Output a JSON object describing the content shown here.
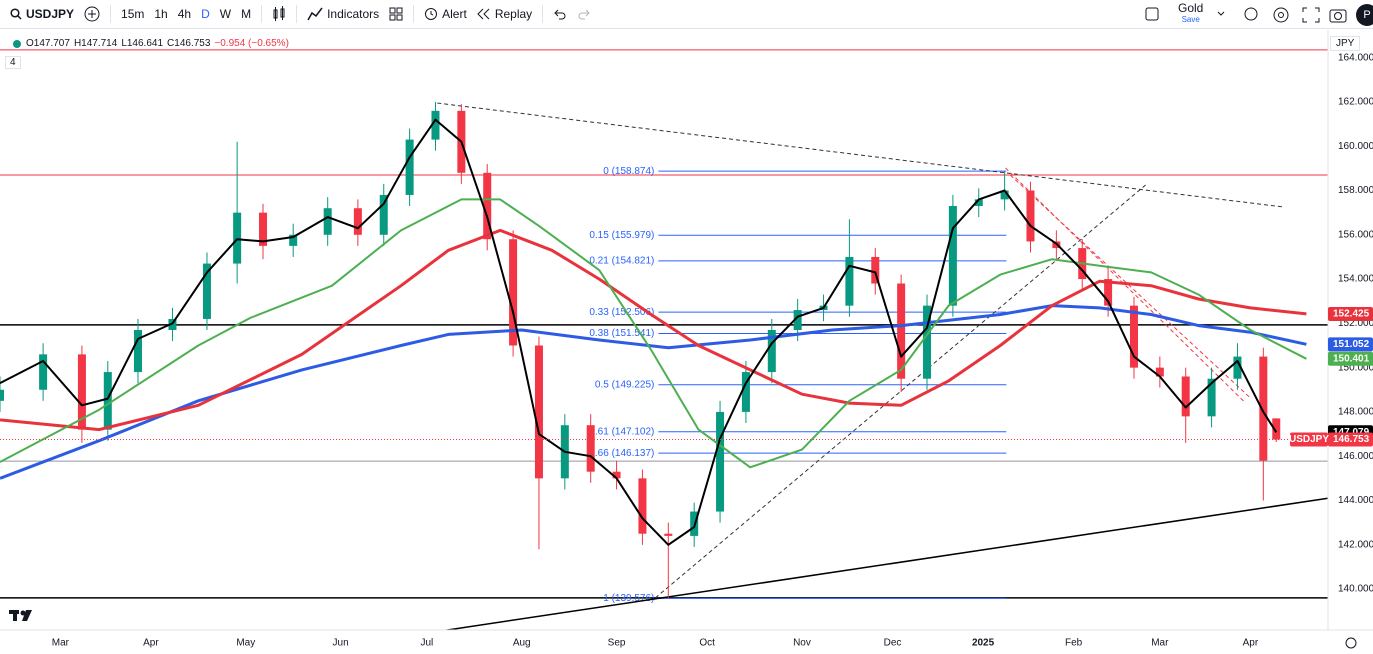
{
  "toolbar": {
    "symbol": "USDJPY",
    "intervals": [
      "15m",
      "1h",
      "4h",
      "D",
      "W",
      "M"
    ],
    "buttons": [
      "Indicators",
      "Alert",
      "Replay"
    ],
    "plan": "Gold",
    "plan_action": "Save",
    "avatar": "P"
  },
  "legend": {
    "ohlc": [
      "O147.707",
      "H147.714",
      "L146.641",
      "C146.753"
    ],
    "change": "−0.954 (−0.65%)",
    "indicator_count": "4"
  },
  "currency": "JPY",
  "chart_data": {
    "type": "candlestick",
    "symbol_label": "USDJPY",
    "grid": false,
    "xlim": [
      0,
      308
    ],
    "xticks": [
      {
        "value": 14,
        "label": "Mar"
      },
      {
        "value": 35,
        "label": "Apr"
      },
      {
        "value": 57,
        "label": "May"
      },
      {
        "value": 79,
        "label": "Jun"
      },
      {
        "value": 99,
        "label": "Jul"
      },
      {
        "value": 121,
        "label": "Aug"
      },
      {
        "value": 143,
        "label": "Sep"
      },
      {
        "value": 164,
        "label": "Oct"
      },
      {
        "value": 186,
        "label": "Nov"
      },
      {
        "value": 207,
        "label": "Dec"
      },
      {
        "value": 228,
        "label": "2025"
      },
      {
        "value": 249,
        "label": "Feb"
      },
      {
        "value": 269,
        "label": "Mar"
      },
      {
        "value": 290,
        "label": "Apr"
      }
    ],
    "ylim": [
      138.15,
      165.25
    ],
    "yticks": [
      {
        "value": 140,
        "label": "140.000"
      },
      {
        "value": 142,
        "label": "142.000"
      },
      {
        "value": 144,
        "label": "144.000"
      },
      {
        "value": 146,
        "label": "146.000"
      },
      {
        "value": 148,
        "label": "148.000"
      },
      {
        "value": 150,
        "label": "150.000"
      },
      {
        "value": 152,
        "label": "152.000"
      },
      {
        "value": 154,
        "label": "154.000"
      },
      {
        "value": 156,
        "label": "156.000"
      },
      {
        "value": 158,
        "label": "158.000"
      },
      {
        "value": 160,
        "label": "160.000"
      },
      {
        "value": 162,
        "label": "162.000"
      },
      {
        "value": 164,
        "label": "164.000"
      }
    ],
    "candles": {
      "up_color": "#089981",
      "down_color": "#f23645",
      "x": [
        0,
        10,
        19,
        25,
        32,
        40,
        48,
        55,
        61,
        68,
        76,
        83,
        89,
        95,
        101,
        107,
        113,
        119,
        125,
        131,
        137,
        143,
        149,
        155,
        161,
        167,
        173,
        179,
        185,
        191,
        197,
        203,
        209,
        215,
        221,
        227,
        233,
        239,
        245,
        251,
        257,
        263,
        269,
        275,
        281,
        287,
        293,
        296
      ],
      "open": [
        148.5,
        149.0,
        150.6,
        147.2,
        149.8,
        151.7,
        152.2,
        154.7,
        157.0,
        155.5,
        156.0,
        157.2,
        156.0,
        157.8,
        160.3,
        161.6,
        158.8,
        155.8,
        151.0,
        145.0,
        147.4,
        145.3,
        145.0,
        142.5,
        142.4,
        143.5,
        148.0,
        149.8,
        151.7,
        152.6,
        152.8,
        155.0,
        153.8,
        149.5,
        152.8,
        157.3,
        157.6,
        158.0,
        155.7,
        155.4,
        154.0,
        152.8,
        150.0,
        149.6,
        147.8,
        149.5,
        150.5,
        147.707
      ],
      "high": [
        149.6,
        151.1,
        151.0,
        150.3,
        152.2,
        152.7,
        155.2,
        160.2,
        157.4,
        156.5,
        157.7,
        157.6,
        158.3,
        160.8,
        162.0,
        161.9,
        159.2,
        156.2,
        151.4,
        147.9,
        147.9,
        145.8,
        145.4,
        143.0,
        143.9,
        148.5,
        150.3,
        152.2,
        153.1,
        153.3,
        156.7,
        155.4,
        154.2,
        153.3,
        157.8,
        158.1,
        158.874,
        158.4,
        156.2,
        155.8,
        154.5,
        153.2,
        150.5,
        150.0,
        150.0,
        151.1,
        150.9,
        147.714
      ],
      "low": [
        148.0,
        148.5,
        146.6,
        146.7,
        149.3,
        151.2,
        151.7,
        153.8,
        154.9,
        155.0,
        155.5,
        155.5,
        155.5,
        157.3,
        159.8,
        158.3,
        155.3,
        150.5,
        141.8,
        144.5,
        144.8,
        144.5,
        142.0,
        139.576,
        141.9,
        143.0,
        147.5,
        149.3,
        151.2,
        152.1,
        152.3,
        153.3,
        148.9,
        149.0,
        152.3,
        156.8,
        157.1,
        155.2,
        154.9,
        153.5,
        152.3,
        149.5,
        149.1,
        146.6,
        147.3,
        149.0,
        144.0,
        146.641
      ],
      "close": [
        149.0,
        150.6,
        147.2,
        149.8,
        151.7,
        152.2,
        154.7,
        157.0,
        155.5,
        156.0,
        157.2,
        156.0,
        157.8,
        160.3,
        161.6,
        158.8,
        155.8,
        151.0,
        145.0,
        147.4,
        145.3,
        145.0,
        142.5,
        142.4,
        143.5,
        148.0,
        149.8,
        151.7,
        152.6,
        152.8,
        155.0,
        153.8,
        149.5,
        152.8,
        157.3,
        157.6,
        158.0,
        155.7,
        155.4,
        154.0,
        152.8,
        150.0,
        149.6,
        147.8,
        149.5,
        150.5,
        145.8,
        146.753
      ]
    },
    "lines": [
      {
        "color": "#2d5be3",
        "width": 3,
        "x": [
          0,
          23,
          46,
          70,
          93,
          104,
          121,
          139,
          155,
          174,
          193,
          209,
          232,
          244,
          255,
          267,
          278,
          290,
          303
        ],
        "values": [
          145.0,
          146.7,
          148.5,
          149.9,
          151.0,
          151.5,
          151.7,
          151.25,
          150.9,
          151.25,
          151.7,
          151.9,
          152.4,
          152.8,
          152.7,
          152.4,
          151.9,
          151.6,
          151.052
        ]
      },
      {
        "color": "#e8323c",
        "width": 3,
        "x": [
          0,
          23,
          46,
          70,
          93,
          104,
          116,
          128,
          139,
          151,
          162,
          174,
          186,
          197,
          209,
          220,
          232,
          244,
          255,
          267,
          278,
          290,
          303
        ],
        "values": [
          147.64,
          147.2,
          148.3,
          150.6,
          153.7,
          155.3,
          156.2,
          155.3,
          154.0,
          152.4,
          151.0,
          149.9,
          148.8,
          148.4,
          148.3,
          149.4,
          151.0,
          152.8,
          153.9,
          153.7,
          153.1,
          152.7,
          152.425
        ]
      },
      {
        "color": "#4caf50",
        "width": 2,
        "x": [
          0,
          23,
          46,
          58,
          77,
          93,
          107,
          116,
          125,
          139,
          151,
          162,
          174,
          186,
          197,
          209,
          220,
          232,
          244,
          255,
          267,
          278,
          290,
          303
        ],
        "values": [
          145.74,
          148.1,
          151.0,
          152.24,
          153.7,
          156.2,
          157.6,
          157.6,
          156.4,
          154.4,
          150.8,
          147.2,
          145.5,
          146.3,
          148.5,
          149.9,
          152.8,
          154.2,
          154.9,
          154.6,
          154.3,
          153.3,
          151.7,
          150.401
        ]
      },
      {
        "color": "#000000",
        "width": 2,
        "x": [
          0,
          10,
          19,
          25,
          32,
          40,
          48,
          55,
          61,
          68,
          76,
          83,
          89,
          95,
          101,
          107,
          113,
          119,
          125,
          131,
          137,
          143,
          149,
          155,
          161,
          167,
          173,
          179,
          185,
          191,
          197,
          203,
          209,
          215,
          221,
          227,
          233,
          239,
          245,
          251,
          257,
          263,
          269,
          275,
          281,
          287,
          293,
          296
        ],
        "values": [
          149.3,
          150.3,
          148.3,
          148.6,
          151.3,
          152.0,
          154.3,
          155.8,
          155.7,
          155.9,
          156.8,
          156.3,
          157.4,
          159.5,
          161.2,
          160.2,
          156.8,
          152.5,
          147.0,
          146.2,
          146.0,
          145.0,
          143.2,
          142.0,
          142.8,
          146.8,
          149.3,
          151.1,
          152.3,
          152.7,
          154.6,
          154.3,
          150.5,
          151.8,
          156.3,
          157.6,
          158.0,
          156.4,
          155.6,
          154.4,
          153.0,
          150.5,
          149.6,
          148.2,
          149.3,
          150.3,
          148.0,
          147.079
        ]
      }
    ],
    "levels": [
      {
        "value": 164.35,
        "color": "#f23645",
        "width": 1
      },
      {
        "value": 158.7,
        "color": "#f23645",
        "width": 1
      },
      {
        "value": 151.93,
        "color": "#000000",
        "width": 1.5
      },
      {
        "value": 145.78,
        "color": "#9598a1",
        "width": 1
      },
      {
        "value": 139.6,
        "color": "#000000",
        "width": 1.5
      }
    ],
    "trendlines": [
      {
        "x": [
          101.4,
          297.5
        ],
        "values": [
          161.95,
          157.26
        ],
        "color": "#333333",
        "dash": true
      },
      {
        "x": [
          152,
          265.7
        ],
        "values": [
          139.6,
          158.25
        ],
        "color": "#333333",
        "dash": true
      },
      {
        "x": [
          98.6,
          308
        ],
        "values": [
          138.0,
          144.1
        ],
        "color": "#000000",
        "dash": false
      },
      {
        "x": [
          233.2,
          288.9
        ],
        "values": [
          159.02,
          148.4
        ],
        "color": "#f23645",
        "dash": true
      },
      {
        "x": [
          234.3,
          290
        ],
        "values": [
          158.7,
          148.63
        ],
        "color": "#f23645",
        "dash": true
      }
    ],
    "fib": {
      "x": [
        152.7,
        233.4
      ],
      "color": "#2962ff",
      "levels": [
        {
          "value": 158.874,
          "label": "0 (158.874)"
        },
        {
          "value": 155.979,
          "label": "0.15 (155.979)"
        },
        {
          "value": 154.821,
          "label": "0.21 (154.821)"
        },
        {
          "value": 152.506,
          "label": "0.33 (152.506)"
        },
        {
          "value": 151.541,
          "label": "0.38 (151.541)"
        },
        {
          "value": 149.225,
          "label": "0.5 (149.225)"
        },
        {
          "value": 147.102,
          "label": "0.61 (147.102)"
        },
        {
          "value": 146.137,
          "label": "0.66 (146.137)"
        },
        {
          "value": 139.576,
          "label": "1 (139.576)"
        }
      ]
    }
  }
}
